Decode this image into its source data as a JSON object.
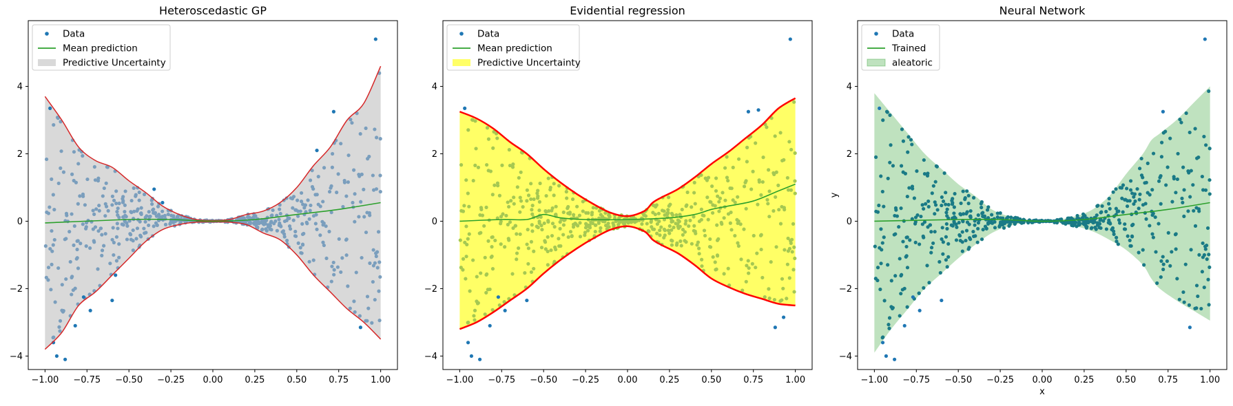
{
  "chart_data": [
    {
      "type": "scatter",
      "title": "Heteroscedastic GP",
      "xlabel": "",
      "ylabel": "",
      "xlim": [
        -1.1,
        1.1
      ],
      "ylim": [
        -4.4,
        5.95
      ],
      "xticks": [
        -1.0,
        -0.75,
        -0.5,
        -0.25,
        0.0,
        0.25,
        0.5,
        0.75,
        1.0
      ],
      "yticks": [
        -4,
        -2,
        0,
        2,
        4
      ],
      "tick_labels_x": [
        "−1.00",
        "−0.75",
        "−0.50",
        "−0.25",
        "0.00",
        "0.25",
        "0.50",
        "0.75",
        "1.00"
      ],
      "tick_labels_y": [
        "−4",
        "−2",
        "0",
        "2",
        "4"
      ],
      "grid": false,
      "legend_position": "top-left",
      "legend": [
        {
          "label": "Data",
          "kind": "point"
        },
        {
          "label": "Mean prediction",
          "kind": "line"
        },
        {
          "label": "Predictive Uncertainty",
          "kind": "patch"
        }
      ],
      "colors": {
        "fill": "#d9d9d9",
        "fill_opacity": 1.0,
        "bound": "#d62728",
        "bound_width": 1.5,
        "mean": "#2ca02c",
        "inner_points": "#7a9ebd",
        "outer_points": "#1f77b4"
      },
      "band": {
        "x": [
          -1.0,
          -0.9,
          -0.8,
          -0.7,
          -0.6,
          -0.5,
          -0.4,
          -0.3,
          -0.2,
          -0.1,
          0.0,
          0.1,
          0.2,
          0.3,
          0.4,
          0.5,
          0.6,
          0.7,
          0.8,
          0.9,
          1.0
        ],
        "upper": [
          3.7,
          3.0,
          2.2,
          1.8,
          1.6,
          1.2,
          0.85,
          0.45,
          0.2,
          0.05,
          0.02,
          0.05,
          0.2,
          0.3,
          0.55,
          1.0,
          1.65,
          2.2,
          3.0,
          3.5,
          4.6
        ],
        "lower": [
          -3.8,
          -3.3,
          -2.5,
          -2.1,
          -1.6,
          -1.1,
          -0.6,
          -0.25,
          -0.1,
          -0.03,
          -0.02,
          -0.03,
          -0.1,
          -0.35,
          -0.55,
          -1.0,
          -1.6,
          -2.1,
          -2.6,
          -3.0,
          -3.5
        ]
      },
      "mean": {
        "x": [
          -1.0,
          -0.5,
          -0.25,
          0.0,
          0.25,
          0.5,
          0.75,
          1.0
        ],
        "y": [
          -0.05,
          0.05,
          0.05,
          0.0,
          0.05,
          0.2,
          0.35,
          0.55
        ]
      },
      "outliers": {
        "x": [
          0.97,
          -0.97,
          -0.95,
          -0.93,
          -0.88,
          -0.82,
          -0.77,
          -0.73,
          -0.6,
          -0.58,
          -0.35,
          0.72,
          0.88,
          0.62,
          -0.3
        ],
        "y": [
          5.4,
          3.35,
          -3.6,
          -4.0,
          -4.1,
          -3.1,
          -2.25,
          -2.65,
          -2.35,
          -1.6,
          0.95,
          3.25,
          -3.15,
          2.1,
          0.55
        ]
      }
    },
    {
      "type": "scatter",
      "title": "Evidential regression",
      "xlabel": "",
      "ylabel": "",
      "xlim": [
        -1.1,
        1.1
      ],
      "ylim": [
        -4.4,
        5.95
      ],
      "xticks": [
        -1.0,
        -0.75,
        -0.5,
        -0.25,
        0.0,
        0.25,
        0.5,
        0.75,
        1.0
      ],
      "yticks": [
        -4,
        -2,
        0,
        2,
        4
      ],
      "tick_labels_x": [
        "−1.00",
        "−0.75",
        "−0.50",
        "−0.25",
        "0.00",
        "0.25",
        "0.50",
        "0.75",
        "1.00"
      ],
      "tick_labels_y": [
        "−4",
        "−2",
        "0",
        "2",
        "4"
      ],
      "grid": false,
      "legend_position": "top-left",
      "legend": [
        {
          "label": "Data",
          "kind": "point"
        },
        {
          "label": "Mean prediction",
          "kind": "line"
        },
        {
          "label": "Predictive Uncertainty",
          "kind": "patch"
        }
      ],
      "colors": {
        "fill": "#ffff66",
        "fill_opacity": 1.0,
        "bound": "#ff0000",
        "bound_width": 2.5,
        "mean": "#2ca02c",
        "inner_points": "#a5c852",
        "outer_points": "#1f77b4"
      },
      "band": {
        "x": [
          -1.0,
          -0.9,
          -0.8,
          -0.7,
          -0.6,
          -0.5,
          -0.4,
          -0.3,
          -0.2,
          -0.1,
          0.0,
          0.1,
          0.15,
          0.2,
          0.3,
          0.4,
          0.5,
          0.6,
          0.7,
          0.8,
          0.9,
          1.0
        ],
        "upper": [
          3.25,
          3.05,
          2.75,
          2.35,
          2.0,
          1.55,
          1.15,
          0.8,
          0.5,
          0.25,
          0.15,
          0.3,
          0.55,
          0.7,
          0.95,
          1.3,
          1.7,
          2.05,
          2.45,
          2.85,
          3.35,
          3.65
        ],
        "lower": [
          -3.2,
          -3.0,
          -2.7,
          -2.35,
          -2.0,
          -1.55,
          -1.15,
          -0.8,
          -0.5,
          -0.25,
          -0.15,
          -0.3,
          -0.55,
          -0.7,
          -0.95,
          -1.3,
          -1.7,
          -1.95,
          -2.15,
          -2.3,
          -2.45,
          -2.5
        ]
      },
      "mean": {
        "x": [
          -1.0,
          -0.75,
          -0.6,
          -0.5,
          -0.4,
          -0.25,
          0.0,
          0.25,
          0.4,
          0.5,
          0.6,
          0.75,
          0.9,
          1.0
        ],
        "y": [
          0.0,
          0.05,
          0.05,
          0.2,
          0.1,
          0.05,
          0.05,
          0.1,
          0.2,
          0.35,
          0.45,
          0.6,
          0.9,
          1.1
        ]
      },
      "outliers": {
        "x": [
          0.97,
          -0.97,
          -0.95,
          -0.93,
          -0.88,
          -0.82,
          -0.77,
          -0.73,
          -0.6,
          0.72,
          0.88,
          0.78,
          0.93
        ],
        "y": [
          5.4,
          3.35,
          -3.6,
          -4.0,
          -4.1,
          -3.1,
          -2.25,
          -2.65,
          -2.35,
          3.25,
          -3.15,
          3.3,
          -2.85
        ]
      }
    },
    {
      "type": "scatter",
      "title": "Neural Network",
      "xlabel": "x",
      "ylabel": "y",
      "xlim": [
        -1.1,
        1.1
      ],
      "ylim": [
        -4.4,
        5.95
      ],
      "xticks": [
        -1.0,
        -0.75,
        -0.5,
        -0.25,
        0.0,
        0.25,
        0.5,
        0.75,
        1.0
      ],
      "yticks": [
        -4,
        -2,
        0,
        2,
        4
      ],
      "tick_labels_x": [
        "−1.00",
        "−0.75",
        "−0.50",
        "−0.25",
        "0.00",
        "0.25",
        "0.50",
        "0.75",
        "1.00"
      ],
      "tick_labels_y": [
        "−4",
        "−2",
        "0",
        "2",
        "4"
      ],
      "grid": false,
      "legend_position": "top-left",
      "legend": [
        {
          "label": "Data",
          "kind": "point"
        },
        {
          "label": "Trained",
          "kind": "line"
        },
        {
          "label": "aleatoric",
          "kind": "patch"
        }
      ],
      "colors": {
        "fill": "#2ca02c",
        "fill_opacity": 0.3,
        "bound": "none",
        "bound_width": 0,
        "mean": "#2ca02c",
        "inner_points": "#1a7a86",
        "outer_points": "#1f77b4"
      },
      "band": {
        "x": [
          -1.0,
          -0.9,
          -0.8,
          -0.7,
          -0.6,
          -0.5,
          -0.4,
          -0.3,
          -0.2,
          -0.1,
          0.0,
          0.1,
          0.2,
          0.3,
          0.4,
          0.5,
          0.6,
          0.65,
          0.7,
          0.8,
          0.9,
          1.0
        ],
        "upper": [
          3.8,
          3.2,
          2.6,
          2.0,
          1.55,
          1.1,
          0.75,
          0.35,
          0.15,
          0.05,
          0.02,
          0.05,
          0.15,
          0.35,
          0.75,
          1.4,
          2.0,
          2.4,
          2.6,
          3.0,
          3.5,
          4.0
        ],
        "lower": [
          -3.9,
          -3.2,
          -2.6,
          -2.0,
          -1.55,
          -1.1,
          -0.7,
          -0.35,
          -0.15,
          -0.05,
          -0.02,
          -0.05,
          -0.15,
          -0.3,
          -0.55,
          -0.85,
          -1.3,
          -1.7,
          -2.0,
          -2.35,
          -2.65,
          -2.95
        ]
      },
      "mean": {
        "x": [
          -1.0,
          -0.5,
          -0.25,
          0.0,
          0.25,
          0.5,
          0.75,
          1.0
        ],
        "y": [
          0.0,
          0.05,
          0.05,
          0.0,
          0.05,
          0.2,
          0.35,
          0.55
        ]
      },
      "outliers": {
        "x": [
          0.97,
          -0.97,
          -0.95,
          -0.93,
          -0.88,
          -0.82,
          -0.77,
          -0.73,
          -0.6,
          0.72,
          0.88
        ],
        "y": [
          5.4,
          3.35,
          -3.6,
          -4.0,
          -4.1,
          -3.1,
          -2.25,
          -2.65,
          -2.35,
          3.25,
          -3.15
        ]
      }
    }
  ]
}
